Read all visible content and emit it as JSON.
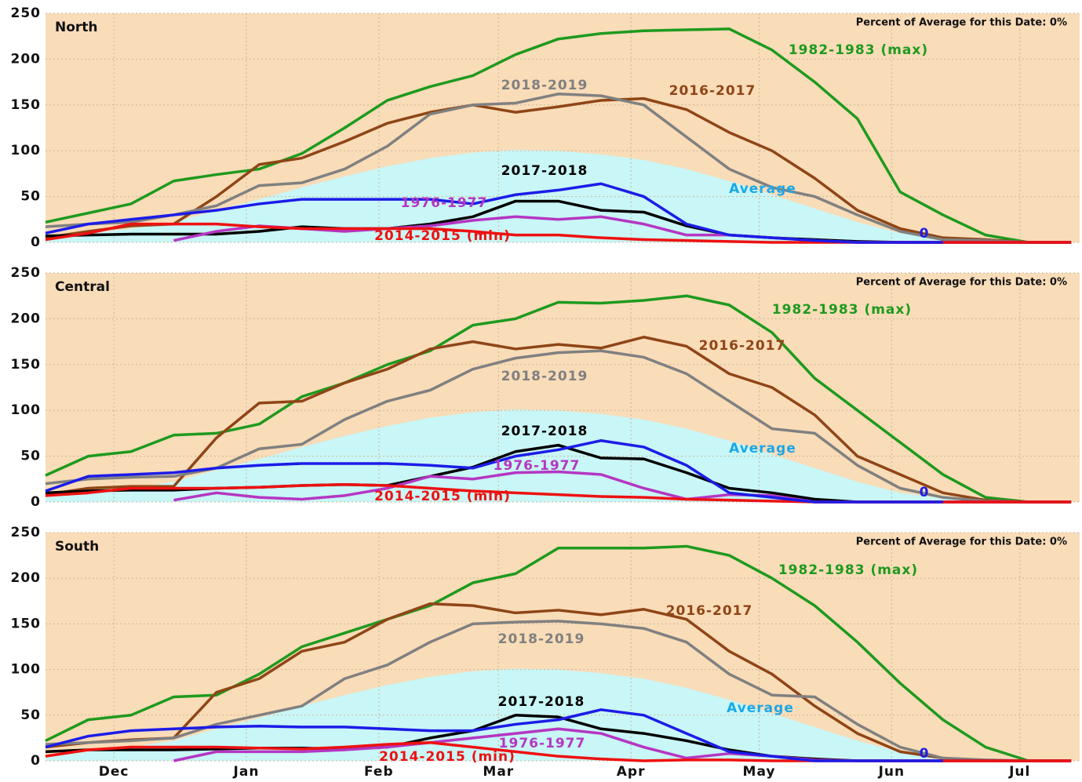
{
  "chart_data": [
    {
      "type": "line",
      "title": "North",
      "annotation": "Percent of Average for this Date: 0%",
      "x": [
        0,
        10,
        20,
        30,
        40,
        50,
        60,
        70,
        80,
        90,
        100,
        110,
        120,
        130,
        140,
        150,
        160,
        170,
        180,
        190,
        200,
        210,
        220,
        230,
        240
      ],
      "xlim": [
        0,
        242
      ],
      "xticks": [
        16,
        47,
        78,
        106,
        137,
        167,
        198,
        228
      ],
      "ylim": [
        0,
        250
      ],
      "yticks": [
        0,
        50,
        100,
        150,
        200,
        250
      ],
      "grid": true,
      "background": "#f9dcb8",
      "series": [
        {
          "name": "Average",
          "color": "#1aa7e8",
          "fill": "#c9f6f6",
          "style": "area",
          "values": [
            5,
            10,
            15,
            22,
            35,
            47,
            60,
            72,
            83,
            92,
            98,
            101,
            100,
            96,
            90,
            80,
            67,
            52,
            37,
            22,
            10,
            4,
            1,
            0,
            0
          ]
        },
        {
          "name": "1982-1983 (max)",
          "color": "#1e9a1e",
          "values": [
            22,
            32,
            42,
            67,
            74,
            80,
            97,
            125,
            155,
            170,
            182,
            205,
            222,
            228,
            231,
            232,
            233,
            210,
            175,
            135,
            55,
            30,
            8,
            0,
            0
          ]
        },
        {
          "name": "2016-2017",
          "color": "#8f4516",
          "values": [
            5,
            12,
            18,
            20,
            50,
            85,
            92,
            110,
            130,
            142,
            150,
            142,
            148,
            155,
            157,
            145,
            120,
            100,
            70,
            35,
            15,
            5,
            3,
            0,
            0
          ]
        },
        {
          "name": "2018-2019",
          "color": "#808080",
          "values": [
            17,
            20,
            22,
            30,
            40,
            62,
            65,
            80,
            105,
            140,
            150,
            152,
            162,
            160,
            150,
            115,
            80,
            60,
            50,
            30,
            12,
            3,
            2,
            0,
            0
          ]
        },
        {
          "name": "2017-2018",
          "color": "#000000",
          "values": [
            7,
            8,
            9,
            9,
            9,
            12,
            17,
            15,
            15,
            20,
            28,
            45,
            45,
            35,
            33,
            18,
            8,
            5,
            3,
            1,
            0,
            0,
            0,
            0,
            0
          ]
        },
        {
          "name": "1976-1977",
          "color": "#b536c2",
          "values": [
            null,
            null,
            null,
            2,
            12,
            18,
            15,
            12,
            15,
            18,
            24,
            28,
            25,
            28,
            20,
            8,
            8,
            5,
            2,
            0,
            0,
            0,
            0,
            0,
            0
          ]
        },
        {
          "name": "2014-2015 (min)",
          "color": "#ee1111",
          "values": [
            3,
            10,
            20,
            20,
            20,
            17,
            15,
            15,
            15,
            15,
            12,
            8,
            8,
            5,
            3,
            2,
            1,
            0,
            0,
            0,
            0,
            0,
            0,
            0,
            0
          ]
        },
        {
          "name": "0",
          "color": "#1c1ce8",
          "values": [
            10,
            20,
            25,
            30,
            35,
            42,
            47,
            47,
            47,
            47,
            42,
            52,
            57,
            64,
            50,
            20,
            8,
            5,
            2,
            0,
            0,
            0,
            null,
            null,
            null
          ]
        }
      ]
    },
    {
      "type": "line",
      "title": "Central",
      "annotation": "Percent of Average for this Date: 0%",
      "x": [
        0,
        10,
        20,
        30,
        40,
        50,
        60,
        70,
        80,
        90,
        100,
        110,
        120,
        130,
        140,
        150,
        160,
        170,
        180,
        190,
        200,
        210,
        220,
        230,
        240
      ],
      "xlim": [
        0,
        242
      ],
      "xticks": [
        16,
        47,
        78,
        106,
        137,
        167,
        198,
        228
      ],
      "ylim": [
        0,
        250
      ],
      "yticks": [
        0,
        50,
        100,
        150,
        200,
        250
      ],
      "grid": true,
      "background": "#f9dcb8",
      "series": [
        {
          "name": "Average",
          "color": "#1aa7e8",
          "fill": "#c9f6f6",
          "style": "area",
          "values": [
            5,
            10,
            15,
            22,
            35,
            47,
            60,
            72,
            83,
            92,
            98,
            101,
            100,
            96,
            90,
            80,
            67,
            52,
            37,
            22,
            10,
            4,
            1,
            0,
            0
          ]
        },
        {
          "name": "1982-1983 (max)",
          "color": "#1e9a1e",
          "values": [
            29,
            50,
            55,
            73,
            75,
            85,
            115,
            130,
            150,
            165,
            193,
            200,
            218,
            217,
            220,
            225,
            215,
            185,
            135,
            100,
            65,
            30,
            5,
            0,
            0
          ]
        },
        {
          "name": "2016-2017",
          "color": "#8f4516",
          "values": [
            8,
            15,
            17,
            17,
            70,
            108,
            110,
            130,
            145,
            167,
            175,
            167,
            172,
            168,
            180,
            170,
            140,
            125,
            95,
            50,
            30,
            10,
            2,
            0,
            0
          ]
        },
        {
          "name": "2018-2019",
          "color": "#808080",
          "values": [
            20,
            25,
            27,
            28,
            37,
            58,
            63,
            90,
            110,
            122,
            145,
            157,
            163,
            165,
            158,
            140,
            110,
            80,
            75,
            40,
            15,
            5,
            1,
            0,
            0
          ]
        },
        {
          "name": "2017-2018",
          "color": "#000000",
          "values": [
            10,
            12,
            13,
            13,
            15,
            16,
            18,
            19,
            18,
            28,
            38,
            55,
            62,
            48,
            47,
            32,
            15,
            10,
            3,
            0,
            0,
            0,
            0,
            0,
            0
          ]
        },
        {
          "name": "1976-1977",
          "color": "#b536c2",
          "values": [
            null,
            null,
            null,
            2,
            10,
            5,
            3,
            7,
            15,
            28,
            25,
            32,
            33,
            30,
            15,
            3,
            8,
            7,
            0,
            0,
            0,
            0,
            0,
            0,
            0
          ]
        },
        {
          "name": "2014-2015 (min)",
          "color": "#ee1111",
          "values": [
            7,
            10,
            15,
            15,
            15,
            16,
            18,
            19,
            18,
            15,
            12,
            10,
            8,
            6,
            5,
            3,
            2,
            1,
            0,
            0,
            0,
            0,
            0,
            0,
            0
          ]
        },
        {
          "name": "0",
          "color": "#1c1ce8",
          "values": [
            12,
            28,
            30,
            32,
            37,
            40,
            42,
            42,
            42,
            40,
            37,
            50,
            57,
            67,
            60,
            40,
            10,
            5,
            0,
            0,
            0,
            0,
            null,
            null,
            null
          ]
        }
      ]
    },
    {
      "type": "line",
      "title": "South",
      "annotation": "Percent of Average for this Date: 0%",
      "x": [
        0,
        10,
        20,
        30,
        40,
        50,
        60,
        70,
        80,
        90,
        100,
        110,
        120,
        130,
        140,
        150,
        160,
        170,
        180,
        190,
        200,
        210,
        220,
        230,
        240
      ],
      "xlim": [
        0,
        242
      ],
      "xticks": [
        {
          "value": 16,
          "label": "Dec"
        },
        {
          "value": 47,
          "label": "Jan"
        },
        {
          "value": 78,
          "label": "Feb"
        },
        {
          "value": 106,
          "label": "Mar"
        },
        {
          "value": 137,
          "label": "Apr"
        },
        {
          "value": 167,
          "label": "May"
        },
        {
          "value": 198,
          "label": "Jun"
        },
        {
          "value": 228,
          "label": "Jul"
        }
      ],
      "ylim": [
        0,
        250
      ],
      "yticks": [
        0,
        50,
        100,
        150,
        200,
        250
      ],
      "grid": true,
      "background": "#f9dcb8",
      "series": [
        {
          "name": "Average",
          "color": "#1aa7e8",
          "fill": "#c9f6f6",
          "style": "area",
          "values": [
            5,
            10,
            15,
            22,
            35,
            47,
            60,
            72,
            83,
            92,
            98,
            101,
            100,
            96,
            90,
            80,
            67,
            52,
            37,
            22,
            10,
            4,
            1,
            0,
            0
          ]
        },
        {
          "name": "1982-1983 (max)",
          "color": "#1e9a1e",
          "values": [
            22,
            45,
            50,
            70,
            72,
            95,
            125,
            140,
            155,
            170,
            195,
            205,
            233,
            233,
            233,
            235,
            225,
            200,
            170,
            130,
            85,
            45,
            15,
            0,
            0
          ]
        },
        {
          "name": "2016-2017",
          "color": "#8f4516",
          "values": [
            15,
            20,
            23,
            25,
            75,
            90,
            120,
            130,
            155,
            172,
            170,
            162,
            165,
            160,
            166,
            155,
            120,
            95,
            60,
            30,
            10,
            3,
            0.5,
            0,
            0
          ]
        },
        {
          "name": "2018-2019",
          "color": "#808080",
          "values": [
            18,
            20,
            22,
            25,
            40,
            50,
            60,
            90,
            105,
            130,
            150,
            152,
            153,
            150,
            145,
            130,
            95,
            72,
            70,
            40,
            15,
            3,
            1,
            0,
            0
          ]
        },
        {
          "name": "2017-2018",
          "color": "#000000",
          "values": [
            10,
            12,
            12,
            12,
            13,
            14,
            14,
            13,
            15,
            25,
            33,
            50,
            48,
            35,
            30,
            22,
            12,
            5,
            2,
            0,
            0,
            0,
            0,
            0,
            0
          ]
        },
        {
          "name": "1976-1977",
          "color": "#b536c2",
          "values": [
            null,
            null,
            null,
            0,
            10,
            10,
            10,
            12,
            15,
            20,
            25,
            30,
            35,
            30,
            15,
            3,
            8,
            5,
            1,
            0,
            0,
            0,
            0,
            0,
            0
          ]
        },
        {
          "name": "2014-2015 (min)",
          "color": "#ee1111",
          "values": [
            5,
            12,
            15,
            15,
            15,
            14,
            13,
            15,
            18,
            20,
            15,
            10,
            5,
            2,
            0,
            1,
            1,
            0,
            0,
            0,
            0,
            0,
            0,
            0,
            0
          ]
        },
        {
          "name": "0",
          "color": "#1c1ce8",
          "values": [
            15,
            27,
            33,
            35,
            37,
            38,
            37,
            37,
            35,
            33,
            33,
            40,
            45,
            56,
            50,
            30,
            10,
            5,
            0,
            0,
            0,
            0,
            null,
            null,
            null
          ]
        }
      ]
    }
  ]
}
